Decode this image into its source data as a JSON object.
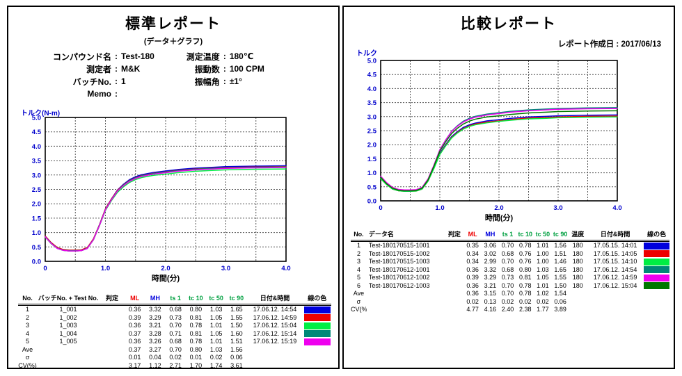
{
  "punct": {
    "colon": ":"
  },
  "standard": {
    "title": "標準レポート",
    "subtitle": "(データ＋グラフ)",
    "info_left": [
      {
        "label": "コンパウンド名",
        "value": "Test-180"
      },
      {
        "label": "測定者",
        "value": "M&K"
      },
      {
        "label": "バッチNo.",
        "value": "1"
      },
      {
        "label": "Memo",
        "value": ""
      }
    ],
    "info_right": [
      {
        "label": "測定温度",
        "value": "180℃"
      },
      {
        "label": "振動数",
        "value": "100 CPM"
      },
      {
        "label": "振幅角",
        "value": "±1°"
      }
    ],
    "table": {
      "headers": [
        "No.",
        "バッチNo. + Test No.",
        "判定",
        "ML",
        "MH",
        "ts 1",
        "tc 10",
        "tc 50",
        "tc 90",
        "日付&時間",
        "線の色"
      ],
      "header_colors": [
        "#000000",
        "#000000",
        "#000000",
        "#ee0000",
        "#0000dd",
        "#00a040",
        "#00a040",
        "#00a040",
        "#00a040",
        "#000000",
        "#000000"
      ],
      "rows": [
        [
          "1",
          "1_001",
          "",
          "0.36",
          "3.32",
          "0.68",
          "0.80",
          "1.03",
          "1.65",
          "17.06.12. 14:54",
          "#0000dd"
        ],
        [
          "2",
          "1_002",
          "",
          "0.39",
          "3.29",
          "0.73",
          "0.81",
          "1.05",
          "1.55",
          "17.06.12. 14:59",
          "#ee0000"
        ],
        [
          "3",
          "1_003",
          "",
          "0.36",
          "3.21",
          "0.70",
          "0.78",
          "1.01",
          "1.50",
          "17.06.12. 15:04",
          "#00ee44"
        ],
        [
          "4",
          "1_004",
          "",
          "0.37",
          "3.28",
          "0.71",
          "0.81",
          "1.05",
          "1.60",
          "17.06.12. 15:14",
          "#008878"
        ],
        [
          "5",
          "1_005",
          "",
          "0.36",
          "3.26",
          "0.68",
          "0.78",
          "1.01",
          "1.51",
          "17.06.12. 15:19",
          "#ee00ee"
        ]
      ],
      "summary": [
        [
          "Ave",
          "",
          "",
          "0.37",
          "3.27",
          "0.70",
          "0.80",
          "1.03",
          "1.56",
          "",
          ""
        ],
        [
          "σ",
          "",
          "",
          "0.01",
          "0.04",
          "0.02",
          "0.01",
          "0.02",
          "0.06",
          "",
          ""
        ],
        [
          "CV(%)",
          "",
          "",
          "3.17",
          "1.12",
          "2.71",
          "1.70",
          "1.74",
          "3.61",
          "",
          ""
        ]
      ]
    }
  },
  "comparison": {
    "title": "比較レポート",
    "date_line": "レポート作成日 : 2017/06/13",
    "table": {
      "headers": [
        "No.",
        "データ名",
        "判定",
        "ML",
        "MH",
        "ts 1",
        "tc 10",
        "tc 50",
        "tc 90",
        "温度",
        "日付&時間",
        "線の色"
      ],
      "header_colors": [
        "#000000",
        "#000000",
        "#000000",
        "#ee0000",
        "#0000dd",
        "#00a040",
        "#00a040",
        "#00a040",
        "#00a040",
        "#000000",
        "#000000",
        "#000000"
      ],
      "rows": [
        [
          "1",
          "Test-180170515-1001",
          "",
          "0.35",
          "3.06",
          "0.70",
          "0.78",
          "1.01",
          "1.56",
          "180",
          "17.05.15. 14:01",
          "#0000dd"
        ],
        [
          "2",
          "Test-180170515-1002",
          "",
          "0.34",
          "3.02",
          "0.68",
          "0.76",
          "1.00",
          "1.51",
          "180",
          "17.05.15. 14:05",
          "#ee0000"
        ],
        [
          "3",
          "Test-180170515-1003",
          "",
          "0.34",
          "2.99",
          "0.70",
          "0.76",
          "1.00",
          "1.46",
          "180",
          "17.05.15. 14:10",
          "#00ee44"
        ],
        [
          "4",
          "Test-180170612-1001",
          "",
          "0.36",
          "3.32",
          "0.68",
          "0.80",
          "1.03",
          "1.65",
          "180",
          "17.06.12. 14:54",
          "#008878"
        ],
        [
          "5",
          "Test-180170612-1002",
          "",
          "0.39",
          "3.29",
          "0.73",
          "0.81",
          "1.05",
          "1.55",
          "180",
          "17.06.12. 14:59",
          "#ee00ee"
        ],
        [
          "6",
          "Test-180170612-1003",
          "",
          "0.36",
          "3.21",
          "0.70",
          "0.78",
          "1.01",
          "1.50",
          "180",
          "17.06.12. 15:04",
          "#007700"
        ]
      ],
      "summary": [
        [
          "Ave",
          "",
          "",
          "0.36",
          "3.15",
          "0.70",
          "0.78",
          "1.02",
          "1.54",
          "",
          "",
          ""
        ],
        [
          "σ",
          "",
          "",
          "0.02",
          "0.13",
          "0.02",
          "0.02",
          "0.02",
          "0.06",
          "",
          "",
          ""
        ],
        [
          "CV(%)",
          "",
          "",
          "4.77",
          "4.16",
          "2.40",
          "2.38",
          "1.77",
          "3.89",
          "",
          "",
          ""
        ]
      ]
    }
  },
  "chart_data": [
    {
      "id": "standard_chart",
      "type": "line",
      "ylabel": "トルク(N-m)",
      "xlabel": "時間(分)",
      "xlim": [
        0,
        4
      ],
      "ylim": [
        0,
        5
      ],
      "grid": true,
      "grid_step": 0.5,
      "legend": "none (colors keyed in table 線の色 column)",
      "x_ticks": {
        "values": [
          0,
          1,
          2,
          3,
          4
        ],
        "labels": [
          "0",
          "1.0",
          "2.0",
          "3.0",
          "4.0"
        ]
      },
      "y_tick_labels": [
        "5.0",
        "4.5",
        "4.0",
        "3.5",
        "3.0",
        "2.5",
        "2.0",
        "1.5",
        "1.0",
        "0.5",
        "0.0"
      ],
      "x": [
        0,
        0.1,
        0.2,
        0.3,
        0.4,
        0.5,
        0.6,
        0.7,
        0.8,
        0.9,
        1.0,
        1.1,
        1.2,
        1.3,
        1.4,
        1.5,
        1.6,
        1.8,
        2.0,
        2.2,
        2.5,
        2.8,
        3.0,
        3.5,
        4.0
      ],
      "series": [
        {
          "name": "1_001",
          "color": "#0000dd",
          "y": [
            0.86,
            0.62,
            0.45,
            0.38,
            0.36,
            0.36,
            0.37,
            0.45,
            0.76,
            1.26,
            1.82,
            2.17,
            2.48,
            2.68,
            2.84,
            2.94,
            3.01,
            3.09,
            3.14,
            3.19,
            3.24,
            3.27,
            3.29,
            3.31,
            3.32
          ]
        },
        {
          "name": "1_002",
          "color": "#ee0000",
          "y": [
            0.88,
            0.65,
            0.48,
            0.41,
            0.39,
            0.39,
            0.4,
            0.48,
            0.78,
            1.27,
            1.82,
            2.17,
            2.47,
            2.66,
            2.81,
            2.91,
            2.98,
            3.06,
            3.11,
            3.16,
            3.21,
            3.24,
            3.26,
            3.28,
            3.29
          ]
        },
        {
          "name": "1_003",
          "color": "#00ee44",
          "y": [
            0.84,
            0.61,
            0.45,
            0.38,
            0.36,
            0.36,
            0.37,
            0.45,
            0.74,
            1.23,
            1.77,
            2.11,
            2.4,
            2.59,
            2.74,
            2.84,
            2.91,
            2.99,
            3.03,
            3.08,
            3.13,
            3.16,
            3.18,
            3.2,
            3.21
          ]
        },
        {
          "name": "1_004",
          "color": "#008878",
          "y": [
            0.86,
            0.63,
            0.46,
            0.39,
            0.37,
            0.37,
            0.38,
            0.46,
            0.76,
            1.26,
            1.8,
            2.15,
            2.45,
            2.65,
            2.8,
            2.9,
            2.97,
            3.05,
            3.1,
            3.15,
            3.2,
            3.23,
            3.25,
            3.27,
            3.28
          ]
        },
        {
          "name": "1_005",
          "color": "#ee00ee",
          "y": [
            0.85,
            0.62,
            0.45,
            0.38,
            0.36,
            0.36,
            0.37,
            0.45,
            0.75,
            1.24,
            1.79,
            2.14,
            2.44,
            2.63,
            2.78,
            2.88,
            2.95,
            3.03,
            3.08,
            3.13,
            3.18,
            3.21,
            3.23,
            3.25,
            3.26
          ]
        }
      ]
    },
    {
      "id": "comparison_chart",
      "type": "line",
      "ylabel": "トルク",
      "xlabel": "時間(分)",
      "xlim": [
        0,
        4
      ],
      "ylim": [
        0,
        5
      ],
      "grid": true,
      "grid_step": 0.5,
      "legend": "none (colors keyed in table 線の色 column)",
      "x_ticks": {
        "values": [
          0,
          1,
          2,
          3,
          4
        ],
        "labels": [
          "0",
          "1.0",
          "2.0",
          "3.0",
          "4.0"
        ]
      },
      "y_tick_labels": [
        "5.0",
        "4.5",
        "4.0",
        "3.5",
        "3.0",
        "2.5",
        "2.0",
        "1.5",
        "1.0",
        "0.5",
        "0.0"
      ],
      "x": [
        0,
        0.1,
        0.2,
        0.3,
        0.4,
        0.5,
        0.6,
        0.7,
        0.8,
        0.9,
        1.0,
        1.1,
        1.2,
        1.3,
        1.4,
        1.5,
        1.6,
        1.8,
        2.0,
        2.2,
        2.5,
        2.8,
        3.0,
        3.5,
        4.0
      ],
      "series": [
        {
          "name": "Test-180170515-1001",
          "color": "#0000dd",
          "y": [
            0.81,
            0.59,
            0.43,
            0.37,
            0.35,
            0.35,
            0.36,
            0.43,
            0.71,
            1.18,
            1.69,
            2.01,
            2.29,
            2.47,
            2.62,
            2.71,
            2.77,
            2.85,
            2.89,
            2.94,
            2.99,
            3.01,
            3.03,
            3.05,
            3.06
          ]
        },
        {
          "name": "Test-180170515-1002",
          "color": "#ee0000",
          "y": [
            0.79,
            0.58,
            0.42,
            0.36,
            0.34,
            0.34,
            0.35,
            0.42,
            0.7,
            1.16,
            1.66,
            1.98,
            2.26,
            2.44,
            2.58,
            2.67,
            2.74,
            2.81,
            2.85,
            2.9,
            2.95,
            2.97,
            2.99,
            3.01,
            3.02
          ]
        },
        {
          "name": "Test-180170515-1003",
          "color": "#00ee44",
          "y": [
            0.79,
            0.58,
            0.42,
            0.36,
            0.34,
            0.34,
            0.35,
            0.42,
            0.7,
            1.15,
            1.65,
            1.96,
            2.24,
            2.42,
            2.56,
            2.65,
            2.71,
            2.78,
            2.83,
            2.87,
            2.92,
            2.94,
            2.96,
            2.98,
            2.99
          ]
        },
        {
          "name": "Test-180170612-1001",
          "color": "#008878",
          "y": [
            0.86,
            0.62,
            0.45,
            0.38,
            0.36,
            0.36,
            0.37,
            0.45,
            0.76,
            1.26,
            1.82,
            2.17,
            2.48,
            2.68,
            2.84,
            2.94,
            3.01,
            3.09,
            3.14,
            3.19,
            3.24,
            3.27,
            3.29,
            3.31,
            3.32
          ]
        },
        {
          "name": "Test-180170612-1002",
          "color": "#ee00ee",
          "y": [
            0.88,
            0.65,
            0.48,
            0.41,
            0.39,
            0.39,
            0.4,
            0.48,
            0.78,
            1.27,
            1.82,
            2.17,
            2.47,
            2.66,
            2.81,
            2.91,
            2.98,
            3.06,
            3.11,
            3.16,
            3.21,
            3.24,
            3.26,
            3.28,
            3.29
          ]
        },
        {
          "name": "Test-180170612-1003",
          "color": "#007700",
          "y": [
            0.84,
            0.61,
            0.45,
            0.38,
            0.36,
            0.36,
            0.37,
            0.45,
            0.74,
            1.23,
            1.77,
            2.11,
            2.4,
            2.59,
            2.74,
            2.84,
            2.91,
            2.99,
            3.03,
            3.08,
            3.13,
            3.16,
            3.18,
            3.2,
            3.21
          ]
        }
      ]
    }
  ]
}
